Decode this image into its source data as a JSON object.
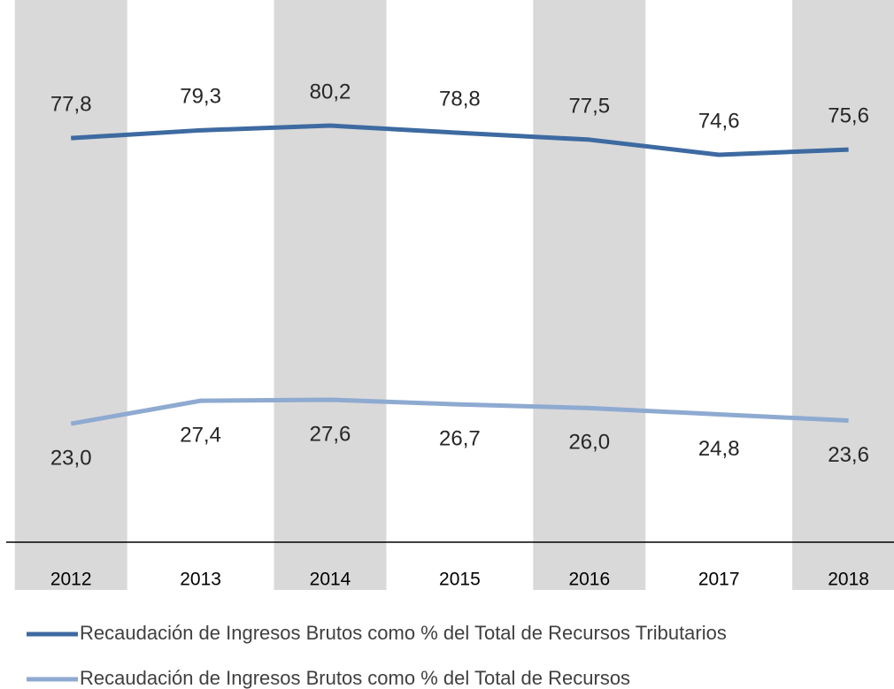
{
  "chart_data": {
    "type": "line",
    "categories": [
      "2012",
      "2013",
      "2014",
      "2015",
      "2016",
      "2017",
      "2018"
    ],
    "series": [
      {
        "name": "Recaudación de Ingresos Brutos como % del Total de Recursos Tributarios",
        "color": "#3d6aa0",
        "values": [
          77.8,
          79.3,
          80.2,
          78.8,
          77.5,
          74.6,
          75.6
        ],
        "value_labels": [
          "77,8",
          "79,3",
          "80,2",
          "78,8",
          "77,5",
          "74,6",
          "75,6"
        ]
      },
      {
        "name": "Recaudación de Ingresos Brutos como % del Total de Recursos",
        "color": "#8eaad0",
        "values": [
          23.0,
          27.4,
          27.6,
          26.7,
          26.0,
          24.8,
          23.6
        ],
        "value_labels": [
          "23,0",
          "27,4",
          "27,6",
          "26,7",
          "26,0",
          "24,8",
          "23,6"
        ]
      }
    ],
    "ylim": [
      0,
      104.3
    ]
  }
}
